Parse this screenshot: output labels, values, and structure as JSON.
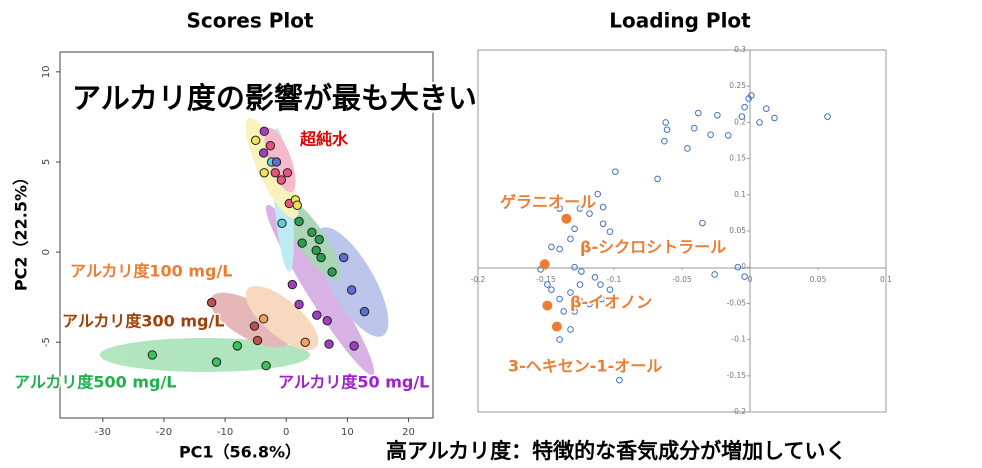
{
  "chart_data": [
    {
      "type": "scatter",
      "title": "Scores Plot",
      "xlabel": "PC1（56.8%）",
      "ylabel": "PC2（22.5%）",
      "annotation": "アルカリ度の影響が最も大きい",
      "xlim": [
        -37,
        24
      ],
      "ylim": [
        -9.2,
        11.1
      ],
      "xticks": [
        -30,
        -20,
        -10,
        0,
        10,
        20
      ],
      "yticks": [
        -5,
        0,
        5,
        10
      ],
      "series": [
        {
          "name": "超純水",
          "color": "#e75480",
          "x": [
            -2.6,
            -1.8,
            0.2,
            0.5,
            -0.8
          ],
          "y": [
            5.9,
            4.4,
            4.4,
            2.7,
            4.0
          ]
        },
        {
          "color": "#f2e05a",
          "x": [
            -5.0,
            -3.6,
            1.5,
            1.8
          ],
          "y": [
            6.2,
            4.4,
            2.9,
            2.6
          ]
        },
        {
          "color": "#5fcfe0",
          "x": [
            -2.4,
            -0.7
          ],
          "y": [
            5.0,
            1.6
          ]
        },
        {
          "color": "#2e9c4e",
          "x": [
            2.1,
            2.6,
            4.2,
            5.4,
            4.9,
            5.7,
            7.5
          ],
          "y": [
            1.7,
            0.5,
            1.1,
            0.7,
            0.1,
            -0.3,
            -1.1
          ]
        },
        {
          "color": "#5a6fd0",
          "x": [
            9.4,
            10.7,
            12.8,
            -1.6
          ],
          "y": [
            -0.3,
            -2.1,
            -3.3,
            5.0
          ]
        },
        {
          "name": "アルカリ度50 mg/L",
          "color": "#a040c0",
          "x": [
            -3.6,
            -3.7,
            1.0,
            2.1,
            5.0,
            6.7,
            7.0,
            11.1
          ],
          "y": [
            6.7,
            5.5,
            -1.8,
            -2.9,
            -3.5,
            -3.8,
            -5.1,
            -5.2
          ]
        },
        {
          "name": "アルカリ度100 mg/L",
          "color": "#f0a060",
          "x": [
            3.1,
            -3.7
          ],
          "y": [
            -5.0,
            -3.7
          ]
        },
        {
          "name": "アルカリ度300 mg/L",
          "color": "#c0504d",
          "x": [
            -12.2,
            -4.7,
            -5.2
          ],
          "y": [
            -2.8,
            -4.9,
            -4.1
          ]
        },
        {
          "name": "アルカリ度500 mg/L",
          "color": "#3cc060",
          "x": [
            -21.9,
            -11.4,
            -8.0,
            -3.3
          ],
          "y": [
            -5.7,
            -6.1,
            -5.2,
            -6.3
          ]
        }
      ]
    },
    {
      "type": "scatter",
      "title": "Loading Plot",
      "xlim": [
        -0.2,
        0.1
      ],
      "ylim": [
        -0.2,
        0.3
      ],
      "xticks": [
        -0.2,
        -0.15,
        -0.1,
        -0.05,
        0,
        0.05,
        0.1
      ],
      "yticks": [
        -0.2,
        -0.15,
        -0.1,
        -0.05,
        0,
        0.05,
        0.1,
        0.15,
        0.2,
        0.25,
        0.3
      ],
      "series": [
        {
          "color": "#4472c4",
          "x": [
            0.057,
            0.012,
            0.018,
            0.007,
            0.001,
            -0.001,
            -0.004,
            -0.006,
            -0.016,
            -0.024,
            -0.038,
            -0.041,
            -0.029,
            -0.046,
            -0.062,
            -0.061,
            -0.063,
            -0.068,
            -0.099,
            -0.112,
            -0.108,
            -0.121,
            -0.118,
            -0.125,
            -0.14,
            -0.134,
            -0.108,
            -0.103,
            -0.129,
            -0.132,
            -0.14,
            -0.146,
            -0.035,
            -0.009,
            -0.004,
            -0.026,
            -0.129,
            -0.124,
            -0.114,
            -0.11,
            -0.125,
            -0.132,
            -0.14,
            -0.149,
            -0.154,
            -0.146,
            -0.137,
            -0.129,
            -0.125,
            -0.118,
            -0.109,
            -0.103,
            -0.132,
            -0.14,
            -0.096
          ],
          "y": [
            0.208,
            0.219,
            0.206,
            0.2,
            0.237,
            0.233,
            0.221,
            0.208,
            0.182,
            0.21,
            0.213,
            0.192,
            0.183,
            0.164,
            0.2,
            0.19,
            0.174,
            0.122,
            0.132,
            0.101,
            0.083,
            0.094,
            0.074,
            0.081,
            0.081,
            0.067,
            0.06,
            0.049,
            0.053,
            0.039,
            0.025,
            0.028,
            0.061,
            0,
            -0.013,
            -0.01,
            0,
            -0.006,
            -0.014,
            -0.024,
            -0.024,
            -0.035,
            -0.044,
            -0.024,
            -0.003,
            -0.031,
            -0.061,
            -0.061,
            -0.047,
            -0.051,
            -0.044,
            -0.031,
            -0.086,
            -0.1,
            -0.156
          ]
        }
      ],
      "highlights": {
        "color": "#ed7d31",
        "labels": [
          "ゲラニオール",
          "β-シクロシトラール",
          "β-イオノン",
          "3-ヘキセン-1-オール"
        ],
        "x": [
          -0.135,
          -0.151,
          -0.149,
          -0.142
        ],
        "y": [
          0.067,
          0.004,
          -0.053,
          -0.082
        ]
      }
    }
  ],
  "caption": "高アルカリ度：特徴的な香気成分が増加していく"
}
